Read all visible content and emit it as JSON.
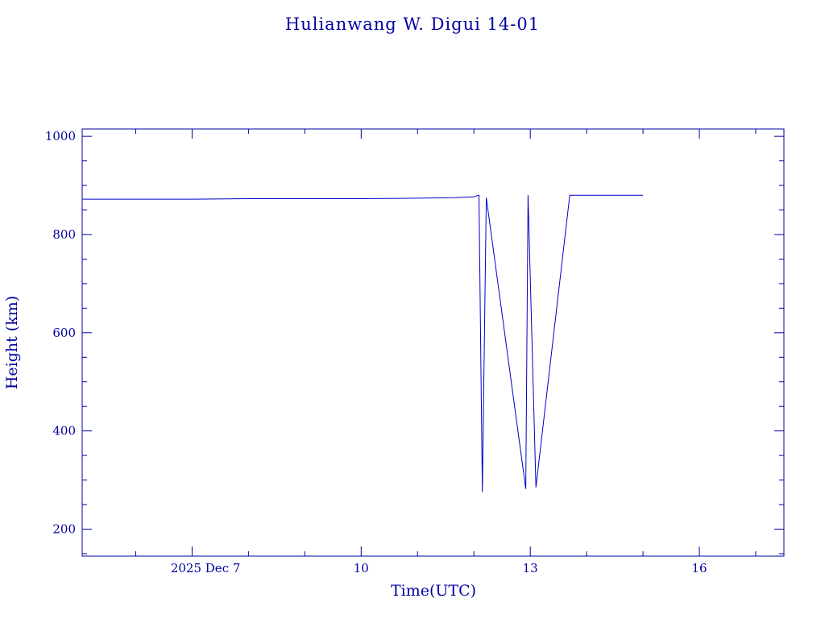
{
  "chart_data": {
    "type": "line",
    "title": "Hulianwang W. Digui 14-01",
    "xlabel": "Time(UTC)",
    "ylabel": "Height (km)",
    "x_unit": "days",
    "x_origin_label": "2025 Dec 7",
    "x_ticks": [
      {
        "value": 7,
        "label": "2025 Dec  7"
      },
      {
        "value": 10,
        "label": "10"
      },
      {
        "value": 13,
        "label": "13"
      },
      {
        "value": 16,
        "label": "16"
      }
    ],
    "xlim": [
      5.05,
      17.5
    ],
    "y_ticks": [
      200,
      400,
      600,
      800,
      1000
    ],
    "ylim": [
      145,
      1015
    ],
    "grid": false,
    "series": [
      {
        "color": "#0000c8",
        "x": [
          5.05,
          5.5,
          6.0,
          7.0,
          8.0,
          9.0,
          10.0,
          11.0,
          11.65,
          12.0,
          12.09,
          12.15,
          12.22,
          12.92,
          12.96,
          13.1,
          13.7,
          14.0,
          14.5,
          15.0
        ],
        "y": [
          872,
          872,
          872,
          872,
          873,
          873,
          873,
          874,
          875,
          877,
          880,
          275,
          875,
          282,
          880,
          285,
          880,
          880,
          880,
          880
        ]
      }
    ]
  }
}
